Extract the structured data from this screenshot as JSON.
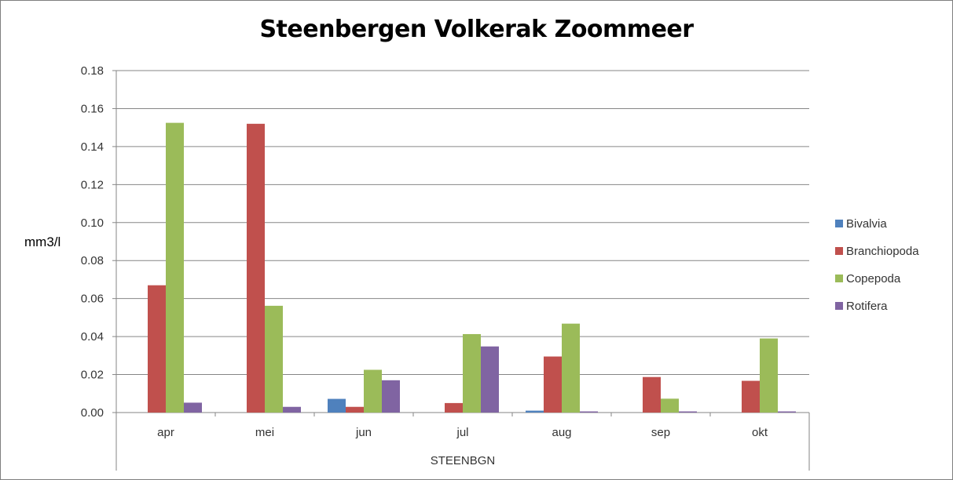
{
  "chart_data": {
    "type": "bar",
    "title": "Steenbergen Volkerak Zoommeer",
    "ylabel": "mm3/l",
    "xlabel": "STEENBGN",
    "categories": [
      "apr",
      "mei",
      "jun",
      "jul",
      "aug",
      "sep",
      "okt"
    ],
    "ylim": [
      0,
      0.18
    ],
    "yticks": [
      "0.00",
      "0.02",
      "0.04",
      "0.06",
      "0.08",
      "0.10",
      "0.12",
      "0.14",
      "0.16",
      "0.18"
    ],
    "grid": true,
    "legend_position": "right",
    "series": [
      {
        "name": "Bivalvia",
        "color": "#4F81BD",
        "values": [
          0,
          0,
          0.0072,
          0,
          0.001,
          0,
          0
        ]
      },
      {
        "name": "Branchiopoda",
        "color": "#C0504D",
        "values": [
          0.067,
          0.152,
          0.003,
          0.005,
          0.0295,
          0.0187,
          0.0167
        ]
      },
      {
        "name": "Copepoda",
        "color": "#9BBB59",
        "values": [
          0.1525,
          0.0562,
          0.0225,
          0.0413,
          0.0468,
          0.0073,
          0.039
        ]
      },
      {
        "name": "Rotifera",
        "color": "#8064A2",
        "values": [
          0.0052,
          0.003,
          0.017,
          0.0348,
          0.0006,
          0.0006,
          0.0006
        ]
      }
    ]
  }
}
